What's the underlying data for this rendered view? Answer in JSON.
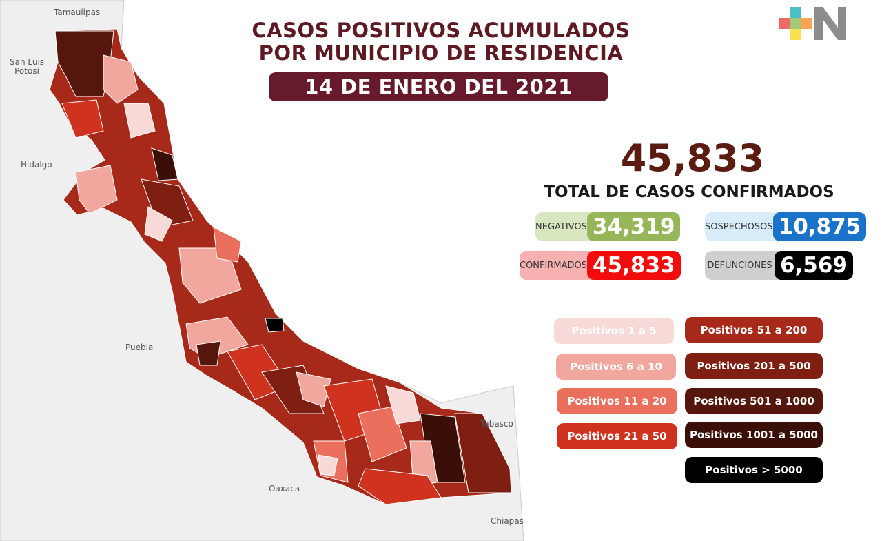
{
  "title_line1": "CASOS POSITIVOS ACUMULADOS",
  "title_line2": "POR MUNICIPIO DE RESIDENCIA",
  "date": "14 DE ENERO DEL 2021",
  "total": {
    "value": "45,833",
    "label": "TOTAL DE CASOS CONFIRMADOS"
  },
  "stats": [
    {
      "label": "NEGATIVOS",
      "value": "34,319",
      "color": "#97b65a",
      "bg": "#d8e7bf"
    },
    {
      "label": "SOSPECHOSOS",
      "value": "10,875",
      "color": "#1a73c8",
      "bg": "#d9ecfa"
    },
    {
      "label": "CONFIRMADOS",
      "value": "45,833",
      "color": "#f20c0c",
      "bg": "#f7b1b1"
    },
    {
      "label": "DEFUNCIONES",
      "value": "6,569",
      "color": "#000000",
      "bg": "#cfcfcf"
    }
  ],
  "legend": [
    {
      "label": "Positivos 1 a 5",
      "color": "#f7dad8"
    },
    {
      "label": "Positivos 6 a 10",
      "color": "#f1a79d"
    },
    {
      "label": "Positivos 11 a 20",
      "color": "#ea6f5c"
    },
    {
      "label": "Positivos 21 a 50",
      "color": "#cf3320"
    },
    {
      "label": "Positivos 51 a 200",
      "color": "#a7291a"
    },
    {
      "label": "Positivos 201 a 500",
      "color": "#7e1f12"
    },
    {
      "label": "Positivos 501 a 1000",
      "color": "#55170d"
    },
    {
      "label": "Positivos 1001 a 5000",
      "color": "#3a0f08"
    },
    {
      "label": "Positivos > 5000",
      "color": "#000000"
    }
  ],
  "states": {
    "tamaulipas": "Tamaulipas",
    "slp1": "San Luis",
    "slp2": "Potosí",
    "hidalgo": "Hidalgo",
    "puebla": "Puebla",
    "oaxaca": "Oaxaca",
    "tabasco": "Tabasco",
    "chiapas": "Chiapas"
  },
  "logo": "+N"
}
